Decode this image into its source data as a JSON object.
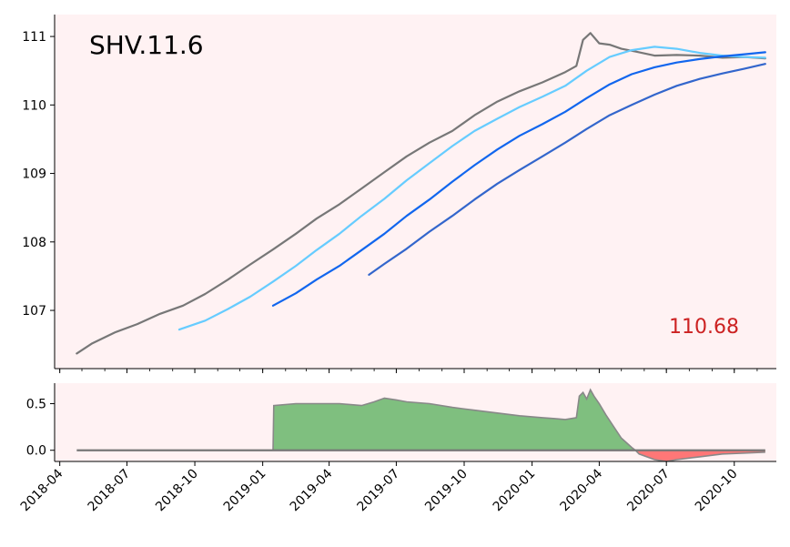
{
  "chart_data": [
    {
      "panel": "main",
      "type": "line",
      "title": "SHV.11.6",
      "last_value_label": "110.68",
      "ylim": [
        106.15,
        111.32
      ],
      "y_ticks": [
        107,
        108,
        109,
        110,
        111
      ],
      "y_tick_labels": [
        "107",
        "108",
        "109",
        "110",
        "111"
      ],
      "xlim": [
        "2018-03-25",
        "2020-11-27"
      ],
      "x_ticks": [
        "2018-04-01",
        "2018-07-01",
        "2018-10-01",
        "2019-01-01",
        "2019-04-01",
        "2019-07-01",
        "2019-10-01",
        "2020-01-01",
        "2020-04-01",
        "2020-07-01",
        "2020-10-01"
      ],
      "x_tick_labels": [
        "2018-04",
        "2018-07",
        "2018-10",
        "2019-01",
        "2019-04",
        "2019-07",
        "2019-10",
        "2020-01",
        "2020-04",
        "2020-07",
        "2020-10"
      ],
      "colors": {
        "price": "#777777",
        "ma_short": "#66ccff",
        "ma_mid": "#1166ee",
        "ma_long": "#3366cc",
        "last_value": "#cc2222",
        "background": "#fff2f3"
      },
      "series": [
        {
          "key": "price",
          "color": "#777777",
          "x": [
            "2018-04-24",
            "2018-05-15",
            "2018-06-15",
            "2018-07-15",
            "2018-08-15",
            "2018-09-15",
            "2018-10-15",
            "2018-11-15",
            "2018-12-15",
            "2019-01-15",
            "2019-02-15",
            "2019-03-15",
            "2019-04-15",
            "2019-05-15",
            "2019-06-15",
            "2019-07-15",
            "2019-08-15",
            "2019-09-15",
            "2019-10-15",
            "2019-11-15",
            "2019-12-15",
            "2020-01-15",
            "2020-02-15",
            "2020-03-01",
            "2020-03-10",
            "2020-03-20",
            "2020-04-01",
            "2020-04-15",
            "2020-05-01",
            "2020-05-20",
            "2020-06-15",
            "2020-07-15",
            "2020-08-15",
            "2020-09-15",
            "2020-10-15",
            "2020-11-12"
          ],
          "values": [
            106.37,
            106.52,
            106.68,
            106.8,
            106.95,
            107.07,
            107.24,
            107.45,
            107.67,
            107.89,
            108.12,
            108.34,
            108.55,
            108.78,
            109.02,
            109.25,
            109.45,
            109.62,
            109.85,
            110.05,
            110.2,
            110.33,
            110.48,
            110.57,
            110.95,
            111.05,
            110.9,
            110.88,
            110.82,
            110.78,
            110.72,
            110.73,
            110.72,
            110.69,
            110.7,
            110.68
          ]
        },
        {
          "key": "ma_short",
          "color": "#66ccff",
          "x": [
            "2018-09-10",
            "2018-10-15",
            "2018-11-15",
            "2018-12-15",
            "2019-01-15",
            "2019-02-15",
            "2019-03-15",
            "2019-04-15",
            "2019-05-15",
            "2019-06-15",
            "2019-07-15",
            "2019-08-15",
            "2019-09-15",
            "2019-10-15",
            "2019-11-15",
            "2019-12-15",
            "2020-01-15",
            "2020-02-15",
            "2020-03-15",
            "2020-04-15",
            "2020-05-15",
            "2020-06-15",
            "2020-07-15",
            "2020-08-15",
            "2020-09-15",
            "2020-10-15",
            "2020-11-12"
          ],
          "values": [
            106.72,
            106.85,
            107.02,
            107.2,
            107.42,
            107.65,
            107.88,
            108.12,
            108.38,
            108.63,
            108.9,
            109.15,
            109.4,
            109.62,
            109.8,
            109.97,
            110.12,
            110.28,
            110.5,
            110.7,
            110.8,
            110.85,
            110.82,
            110.76,
            110.72,
            110.7,
            110.69
          ]
        },
        {
          "key": "ma_mid",
          "color": "#1166ee",
          "x": [
            "2019-01-15",
            "2019-02-15",
            "2019-03-15",
            "2019-04-15",
            "2019-05-15",
            "2019-06-15",
            "2019-07-15",
            "2019-08-15",
            "2019-09-15",
            "2019-10-15",
            "2019-11-15",
            "2019-12-15",
            "2020-01-15",
            "2020-02-15",
            "2020-03-15",
            "2020-04-15",
            "2020-05-15",
            "2020-06-15",
            "2020-07-15",
            "2020-08-15",
            "2020-09-15",
            "2020-10-15",
            "2020-11-12"
          ],
          "values": [
            107.07,
            107.25,
            107.45,
            107.65,
            107.88,
            108.12,
            108.38,
            108.62,
            108.88,
            109.12,
            109.35,
            109.55,
            109.72,
            109.9,
            110.1,
            110.3,
            110.45,
            110.55,
            110.62,
            110.67,
            110.71,
            110.74,
            110.77
          ]
        },
        {
          "key": "ma_long",
          "color": "#3366cc",
          "x": [
            "2019-05-25",
            "2019-06-15",
            "2019-07-15",
            "2019-08-15",
            "2019-09-15",
            "2019-10-15",
            "2019-11-15",
            "2019-12-15",
            "2020-01-15",
            "2020-02-15",
            "2020-03-15",
            "2020-04-15",
            "2020-05-15",
            "2020-06-15",
            "2020-07-15",
            "2020-08-15",
            "2020-09-15",
            "2020-10-15",
            "2020-11-12"
          ],
          "values": [
            107.52,
            107.68,
            107.9,
            108.15,
            108.38,
            108.62,
            108.85,
            109.05,
            109.25,
            109.45,
            109.65,
            109.85,
            110.0,
            110.15,
            110.28,
            110.38,
            110.46,
            110.53,
            110.6
          ]
        }
      ]
    },
    {
      "panel": "difference",
      "type": "area",
      "ylim": [
        -0.12,
        0.72
      ],
      "y_ticks": [
        0.0,
        0.5
      ],
      "y_tick_labels": [
        "0.0",
        "0.5"
      ],
      "colors": {
        "positive": "#7fbf7f",
        "negative": "#ff7777",
        "outline": "#888888",
        "zero_line": "#777777",
        "background": "#fff2f3"
      },
      "zero_line": {
        "x": [
          "2018-04-24",
          "2020-11-12"
        ],
        "values": [
          0,
          0
        ]
      },
      "series": [
        {
          "key": "difference",
          "x": [
            "2019-01-15",
            "2019-01-16",
            "2019-02-15",
            "2019-03-15",
            "2019-04-15",
            "2019-05-15",
            "2019-06-01",
            "2019-06-15",
            "2019-07-01",
            "2019-07-15",
            "2019-08-15",
            "2019-09-15",
            "2019-10-15",
            "2019-11-15",
            "2019-12-15",
            "2020-01-15",
            "2020-02-01",
            "2020-02-15",
            "2020-03-01",
            "2020-03-05",
            "2020-03-10",
            "2020-03-15",
            "2020-03-20",
            "2020-03-25",
            "2020-04-01",
            "2020-04-10",
            "2020-04-20",
            "2020-05-01",
            "2020-05-15",
            "2020-05-20",
            "2020-05-25",
            "2020-06-15",
            "2020-07-01",
            "2020-07-15",
            "2020-08-15",
            "2020-09-15",
            "2020-10-15",
            "2020-11-12"
          ],
          "values": [
            0.0,
            0.48,
            0.5,
            0.5,
            0.5,
            0.48,
            0.52,
            0.56,
            0.54,
            0.52,
            0.5,
            0.46,
            0.43,
            0.4,
            0.37,
            0.35,
            0.34,
            0.33,
            0.35,
            0.58,
            0.62,
            0.55,
            0.65,
            0.58,
            0.5,
            0.38,
            0.26,
            0.13,
            0.03,
            0.0,
            -0.04,
            -0.1,
            -0.12,
            -0.1,
            -0.07,
            -0.04,
            -0.03,
            -0.02
          ]
        }
      ]
    }
  ]
}
